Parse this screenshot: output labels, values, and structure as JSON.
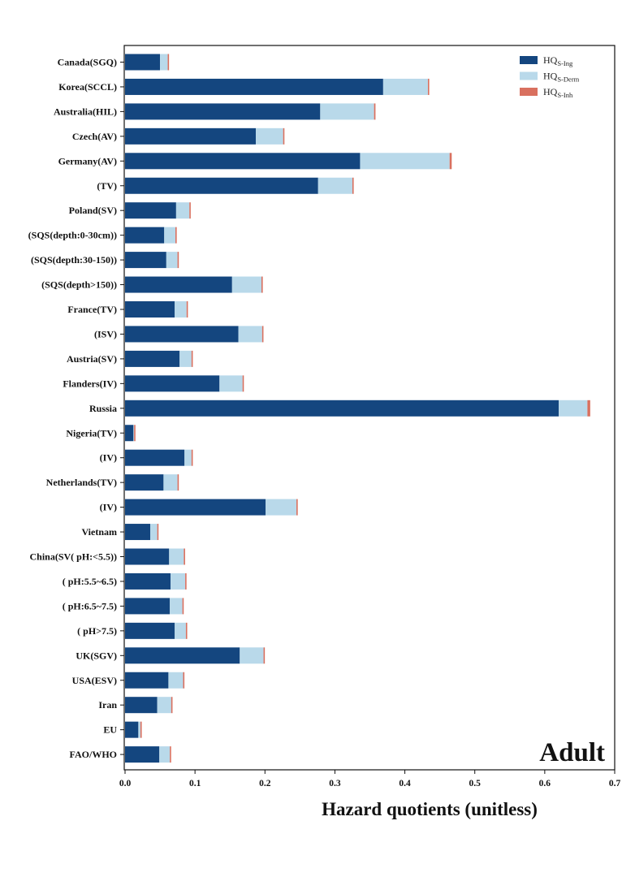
{
  "chart_data": {
    "type": "bar",
    "orientation": "horizontal",
    "stacked": true,
    "title": "Adult",
    "xlabel": "Hazard quotients (unitless)",
    "ylabel": "",
    "xlim": [
      0,
      0.7
    ],
    "xticks": [
      "0.0",
      "0.1",
      "0.2",
      "0.3",
      "0.4",
      "0.5",
      "0.6",
      "0.7"
    ],
    "grid": false,
    "legend_position": "top-right",
    "categories": [
      "Canada(SGQ)",
      "Korea(SCCL)",
      "Australia(HIL)",
      "Czech(AV)",
      "Germany(AV)",
      "(TV)",
      "Poland(SV)",
      "(SQS(depth:0-30cm))",
      "(SQS(depth:30-150))",
      "(SQS(depth>150))",
      "France(TV)",
      "(ISV)",
      "Austria(SV)",
      "Flanders(IV)",
      "Russia",
      "Nigeria(TV)",
      "(IV)",
      "Netherlands(TV)",
      "(IV)",
      "Vietnam",
      "China(SV( pH:<5.5))",
      "( pH:5.5~6.5)",
      "( pH:6.5~7.5)",
      "( pH>7.5)",
      "UK(SGV)",
      "USA(ESV)",
      "Iran",
      "EU",
      "FAO/WHO"
    ],
    "series": [
      {
        "name": "HQS-Ing",
        "label_main": "HQ",
        "label_sub": "S-Ing",
        "color": "#14467f",
        "values": [
          0.05,
          0.369,
          0.279,
          0.187,
          0.336,
          0.276,
          0.073,
          0.056,
          0.059,
          0.153,
          0.071,
          0.162,
          0.078,
          0.135,
          0.62,
          0.012,
          0.085,
          0.055,
          0.201,
          0.036,
          0.063,
          0.065,
          0.064,
          0.071,
          0.164,
          0.062,
          0.046,
          0.019,
          0.049
        ]
      },
      {
        "name": "HQS-Derm",
        "label_main": "HQ",
        "label_sub": "S-Derm",
        "color": "#b9d9ea",
        "values": [
          0.011,
          0.064,
          0.077,
          0.039,
          0.128,
          0.049,
          0.019,
          0.016,
          0.016,
          0.042,
          0.017,
          0.034,
          0.017,
          0.033,
          0.041,
          0.001,
          0.01,
          0.02,
          0.044,
          0.01,
          0.021,
          0.021,
          0.018,
          0.016,
          0.034,
          0.021,
          0.02,
          0.003,
          0.015
        ]
      },
      {
        "name": "HQS-Inh",
        "label_main": "HQ",
        "label_sub": "S-Inh",
        "color": "#d9705f",
        "values": [
          0.0002,
          0.001,
          0.002,
          0.0005,
          0.003,
          0.001,
          0.0003,
          0.0002,
          0.0002,
          0.001,
          0.0003,
          0.001,
          0.0003,
          0.0005,
          0.004,
          0.0001,
          0.0002,
          0.0003,
          0.001,
          0.0002,
          0.0003,
          0.0003,
          0.0003,
          0.0003,
          0.001,
          0.0005,
          0.0002,
          0.0001,
          0.0002
        ]
      }
    ]
  }
}
